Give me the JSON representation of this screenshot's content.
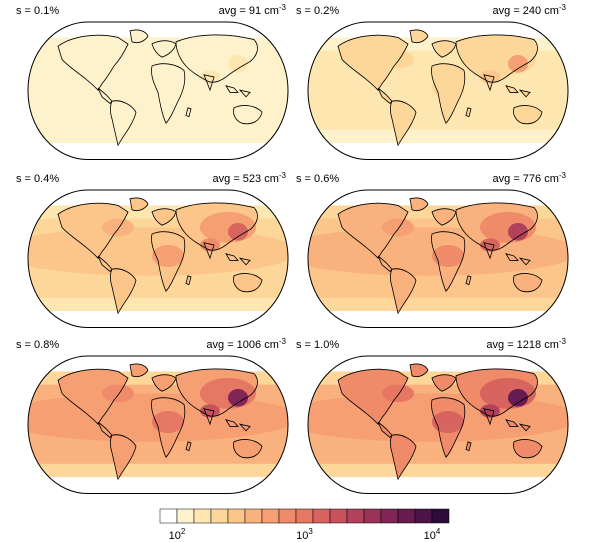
{
  "panels": [
    {
      "s": "s = 0.1%",
      "avg": "avg = 91 cm",
      "exp": "-3",
      "level": 0.12
    },
    {
      "s": "s = 0.2%",
      "avg": "avg = 240 cm",
      "exp": "-3",
      "level": 0.3
    },
    {
      "s": "s = 0.4%",
      "avg": "avg = 523 cm",
      "exp": "-3",
      "level": 0.5
    },
    {
      "s": "s = 0.6%",
      "avg": "avg = 776 cm",
      "exp": "-3",
      "level": 0.62
    },
    {
      "s": "s = 0.8%",
      "avg": "avg = 1006 cm",
      "exp": "-3",
      "level": 0.72
    },
    {
      "s": "s = 1.0%",
      "avg": "avg = 1218 cm",
      "exp": "-3",
      "level": 0.78
    }
  ],
  "colorbar": {
    "colors": [
      "#ffffff",
      "#fdf2cc",
      "#fde6b0",
      "#fdd69a",
      "#fcc58a",
      "#f9b27d",
      "#f59f73",
      "#ef8b69",
      "#e57763",
      "#d8645f",
      "#c6525c",
      "#b2425b",
      "#9a3359",
      "#812657",
      "#661b51",
      "#4c1447",
      "#2e0b3a"
    ],
    "tick_labels": [
      {
        "base": "10",
        "exp": "2"
      },
      {
        "base": "10",
        "exp": "3"
      },
      {
        "base": "10",
        "exp": "4"
      }
    ]
  }
}
